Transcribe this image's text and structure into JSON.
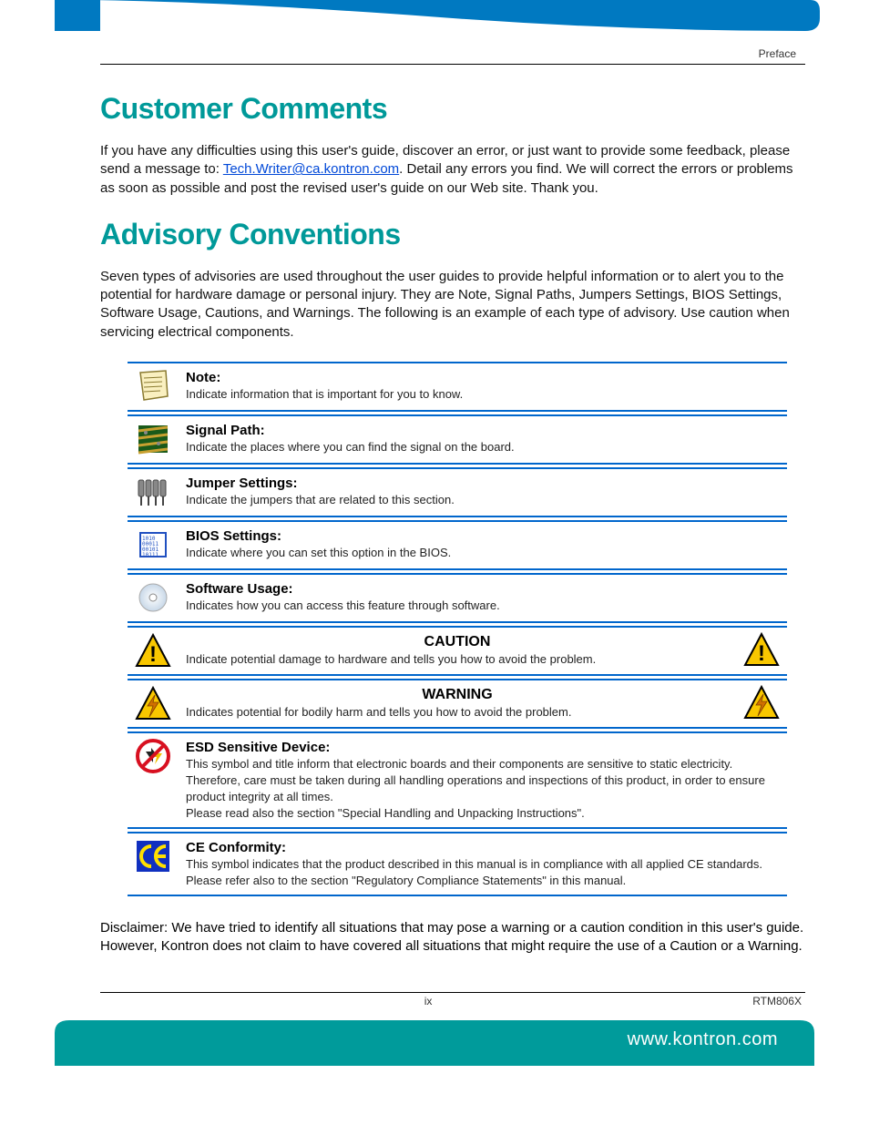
{
  "header": {
    "section_label": "Preface"
  },
  "sections": {
    "customer_comments": {
      "title": "Customer Comments",
      "body_before_email": "If you have any difficulties using this user's guide, discover an error, or just want to provide some feedback, please send a message to: ",
      "email": "Tech.Writer@ca.kontron.com",
      "body_after_email": ". Detail any errors you find. We will correct the errors or problems as soon as possible and post the revised user's guide on our Web site. Thank you."
    },
    "advisory": {
      "title": "Advisory Conventions",
      "intro": "Seven types of advisories are used throughout the user guides to provide helpful information or to alert you to the potential for hardware damage or personal injury. They are Note, Signal Paths, Jumpers Settings, BIOS Settings, Software Usage, Cautions, and Warnings. The following is an example of each type of advisory. Use caution when servicing electrical components."
    }
  },
  "advisories": [
    {
      "key": "note",
      "title": "Note:",
      "desc": "Indicate information that is important for you to know.",
      "center": false,
      "dual_icon": false
    },
    {
      "key": "signal",
      "title": "Signal Path:",
      "desc": "Indicate the places where you can find the signal on the board.",
      "center": false,
      "dual_icon": false
    },
    {
      "key": "jumper",
      "title": "Jumper Settings:",
      "desc": "Indicate the jumpers that are related to this section.",
      "center": false,
      "dual_icon": false
    },
    {
      "key": "bios",
      "title": "BIOS Settings:",
      "desc": "Indicate where you can set this option in the BIOS.",
      "center": false,
      "dual_icon": false
    },
    {
      "key": "software",
      "title": "Software Usage:",
      "desc": "Indicates how you can access this feature through software.",
      "center": false,
      "dual_icon": false
    },
    {
      "key": "caution",
      "title": "CAUTION",
      "desc": "Indicate potential damage to hardware and tells you how to avoid the problem.",
      "center": true,
      "dual_icon": true
    },
    {
      "key": "warning",
      "title": "WARNING",
      "desc": "Indicates potential for bodily harm and tells you how to avoid the problem.",
      "center": true,
      "dual_icon": true
    },
    {
      "key": "esd",
      "title": "ESD Sensitive Device:",
      "desc": "This symbol and title inform that electronic boards and their components are sensitive to static electricity. Therefore, care must be taken during all handling operations and inspections of this product, in order to ensure product integrity at all times.\nPlease read also the section \"Special Handling and Unpacking Instructions\".",
      "center": false,
      "dual_icon": false
    },
    {
      "key": "ce",
      "title": "CE Conformity:",
      "desc": "This symbol indicates that the product described in this manual is in compliance with all applied CE standards. Please refer also to the section \"Regulatory Compliance Statements\" in this manual.",
      "center": false,
      "dual_icon": false
    }
  ],
  "disclaimer": "Disclaimer: We have tried to identify all situations that may pose a warning or a caution condition in this user's guide. However, Kontron does not claim to have covered all situations that might require the use of a Caution or a Warning.",
  "footer": {
    "page": "ix",
    "doc_id": "RTM806X",
    "url": "www.kontron.com"
  },
  "colors": {
    "heading": "#009999",
    "rule_blue": "#0066cc",
    "banner_blue": "#0079c1",
    "banner_teal": "#009b9b",
    "link": "#0048d8"
  }
}
